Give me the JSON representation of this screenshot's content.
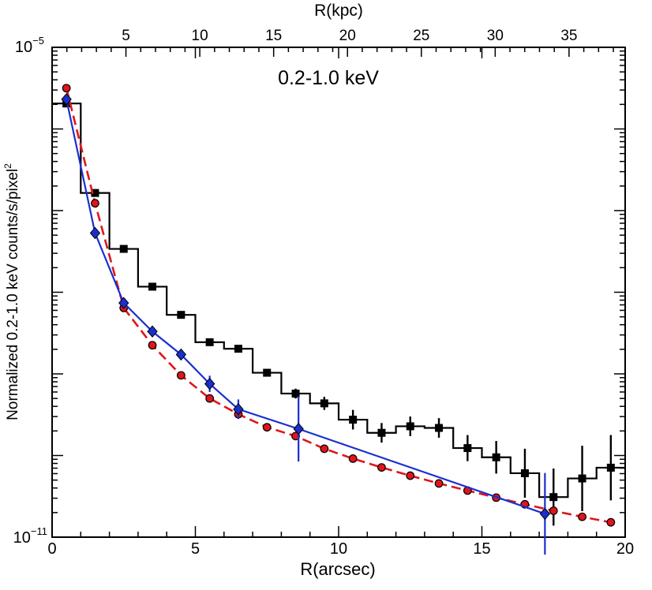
{
  "chart_data": {
    "type": "line",
    "annotation": "0.2-1.0 keV",
    "xlabel": "R(arcsec)",
    "ylabel": "Normalized 0.2-1.0 keV counts/s/pixel",
    "ylabel_sup": "2",
    "top_xlabel": "R(kpc)",
    "xlim": [
      0,
      20
    ],
    "ylim_log10": [
      -11,
      -5
    ],
    "x_ticks": [
      0,
      5,
      10,
      15,
      20
    ],
    "x_tick_labels": [
      "0",
      "5",
      "10",
      "15",
      "20"
    ],
    "top_ticks": [
      5,
      10,
      15,
      20,
      25,
      30,
      35
    ],
    "top_tick_labels": [
      "5",
      "10",
      "15",
      "20",
      "25",
      "30",
      "35"
    ],
    "y_label_top": {
      "base": "10",
      "exp": "−5"
    },
    "y_label_bottom": {
      "base": "10",
      "exp": "−11"
    },
    "series": [
      {
        "name": "black step",
        "style": "step-squares",
        "color": "#000000",
        "x": [
          0.5,
          1.5,
          2.5,
          3.5,
          4.5,
          5.5,
          6.5,
          7.5,
          8.5,
          9.5,
          10.5,
          11.5,
          12.5,
          13.5,
          14.5,
          15.5,
          16.5,
          17.5,
          18.5,
          19.5
        ],
        "log10y": [
          -5.688,
          -6.784,
          -7.469,
          -7.932,
          -8.277,
          -8.612,
          -8.692,
          -8.986,
          -9.241,
          -9.361,
          -9.561,
          -9.722,
          -9.642,
          -9.662,
          -9.909,
          -10.022,
          -10.217,
          -10.509,
          -10.281,
          -10.149
        ],
        "err": [
          0,
          0,
          0,
          0,
          0,
          0,
          0,
          0.03,
          0.06,
          0.08,
          0.12,
          0.12,
          0.12,
          0.12,
          0.16,
          0.2,
          0.3,
          0.35,
          0.4,
          0.4
        ]
      },
      {
        "name": "blue diamonds",
        "style": "solid-diamonds",
        "color": "#1a2fcf",
        "x": [
          0.5,
          1.5,
          2.5,
          3.5,
          4.5,
          5.5,
          6.5,
          8.6,
          17.2
        ],
        "log10y": [
          -5.637,
          -7.275,
          -8.132,
          -8.481,
          -8.763,
          -9.122,
          -9.433,
          -9.674,
          -10.714
        ],
        "err": [
          0,
          0,
          0,
          0.04,
          0.04,
          0.1,
          0.12,
          0.4,
          0.5
        ]
      },
      {
        "name": "red circles",
        "style": "dashed-circles",
        "color": "#e0151c",
        "x": [
          0.5,
          1.5,
          2.5,
          3.5,
          4.5,
          5.5,
          6.5,
          7.5,
          8.5,
          9.5,
          10.5,
          11.5,
          12.5,
          13.5,
          14.5,
          15.5,
          16.5,
          17.5,
          18.5,
          19.5
        ],
        "log10y": [
          -5.5,
          -6.91,
          -8.192,
          -8.649,
          -9.018,
          -9.301,
          -9.494,
          -9.654,
          -9.762,
          -9.917,
          -10.038,
          -10.146,
          -10.247,
          -10.342,
          -10.429,
          -10.516,
          -10.597,
          -10.677,
          -10.751,
          -10.818
        ]
      }
    ]
  }
}
